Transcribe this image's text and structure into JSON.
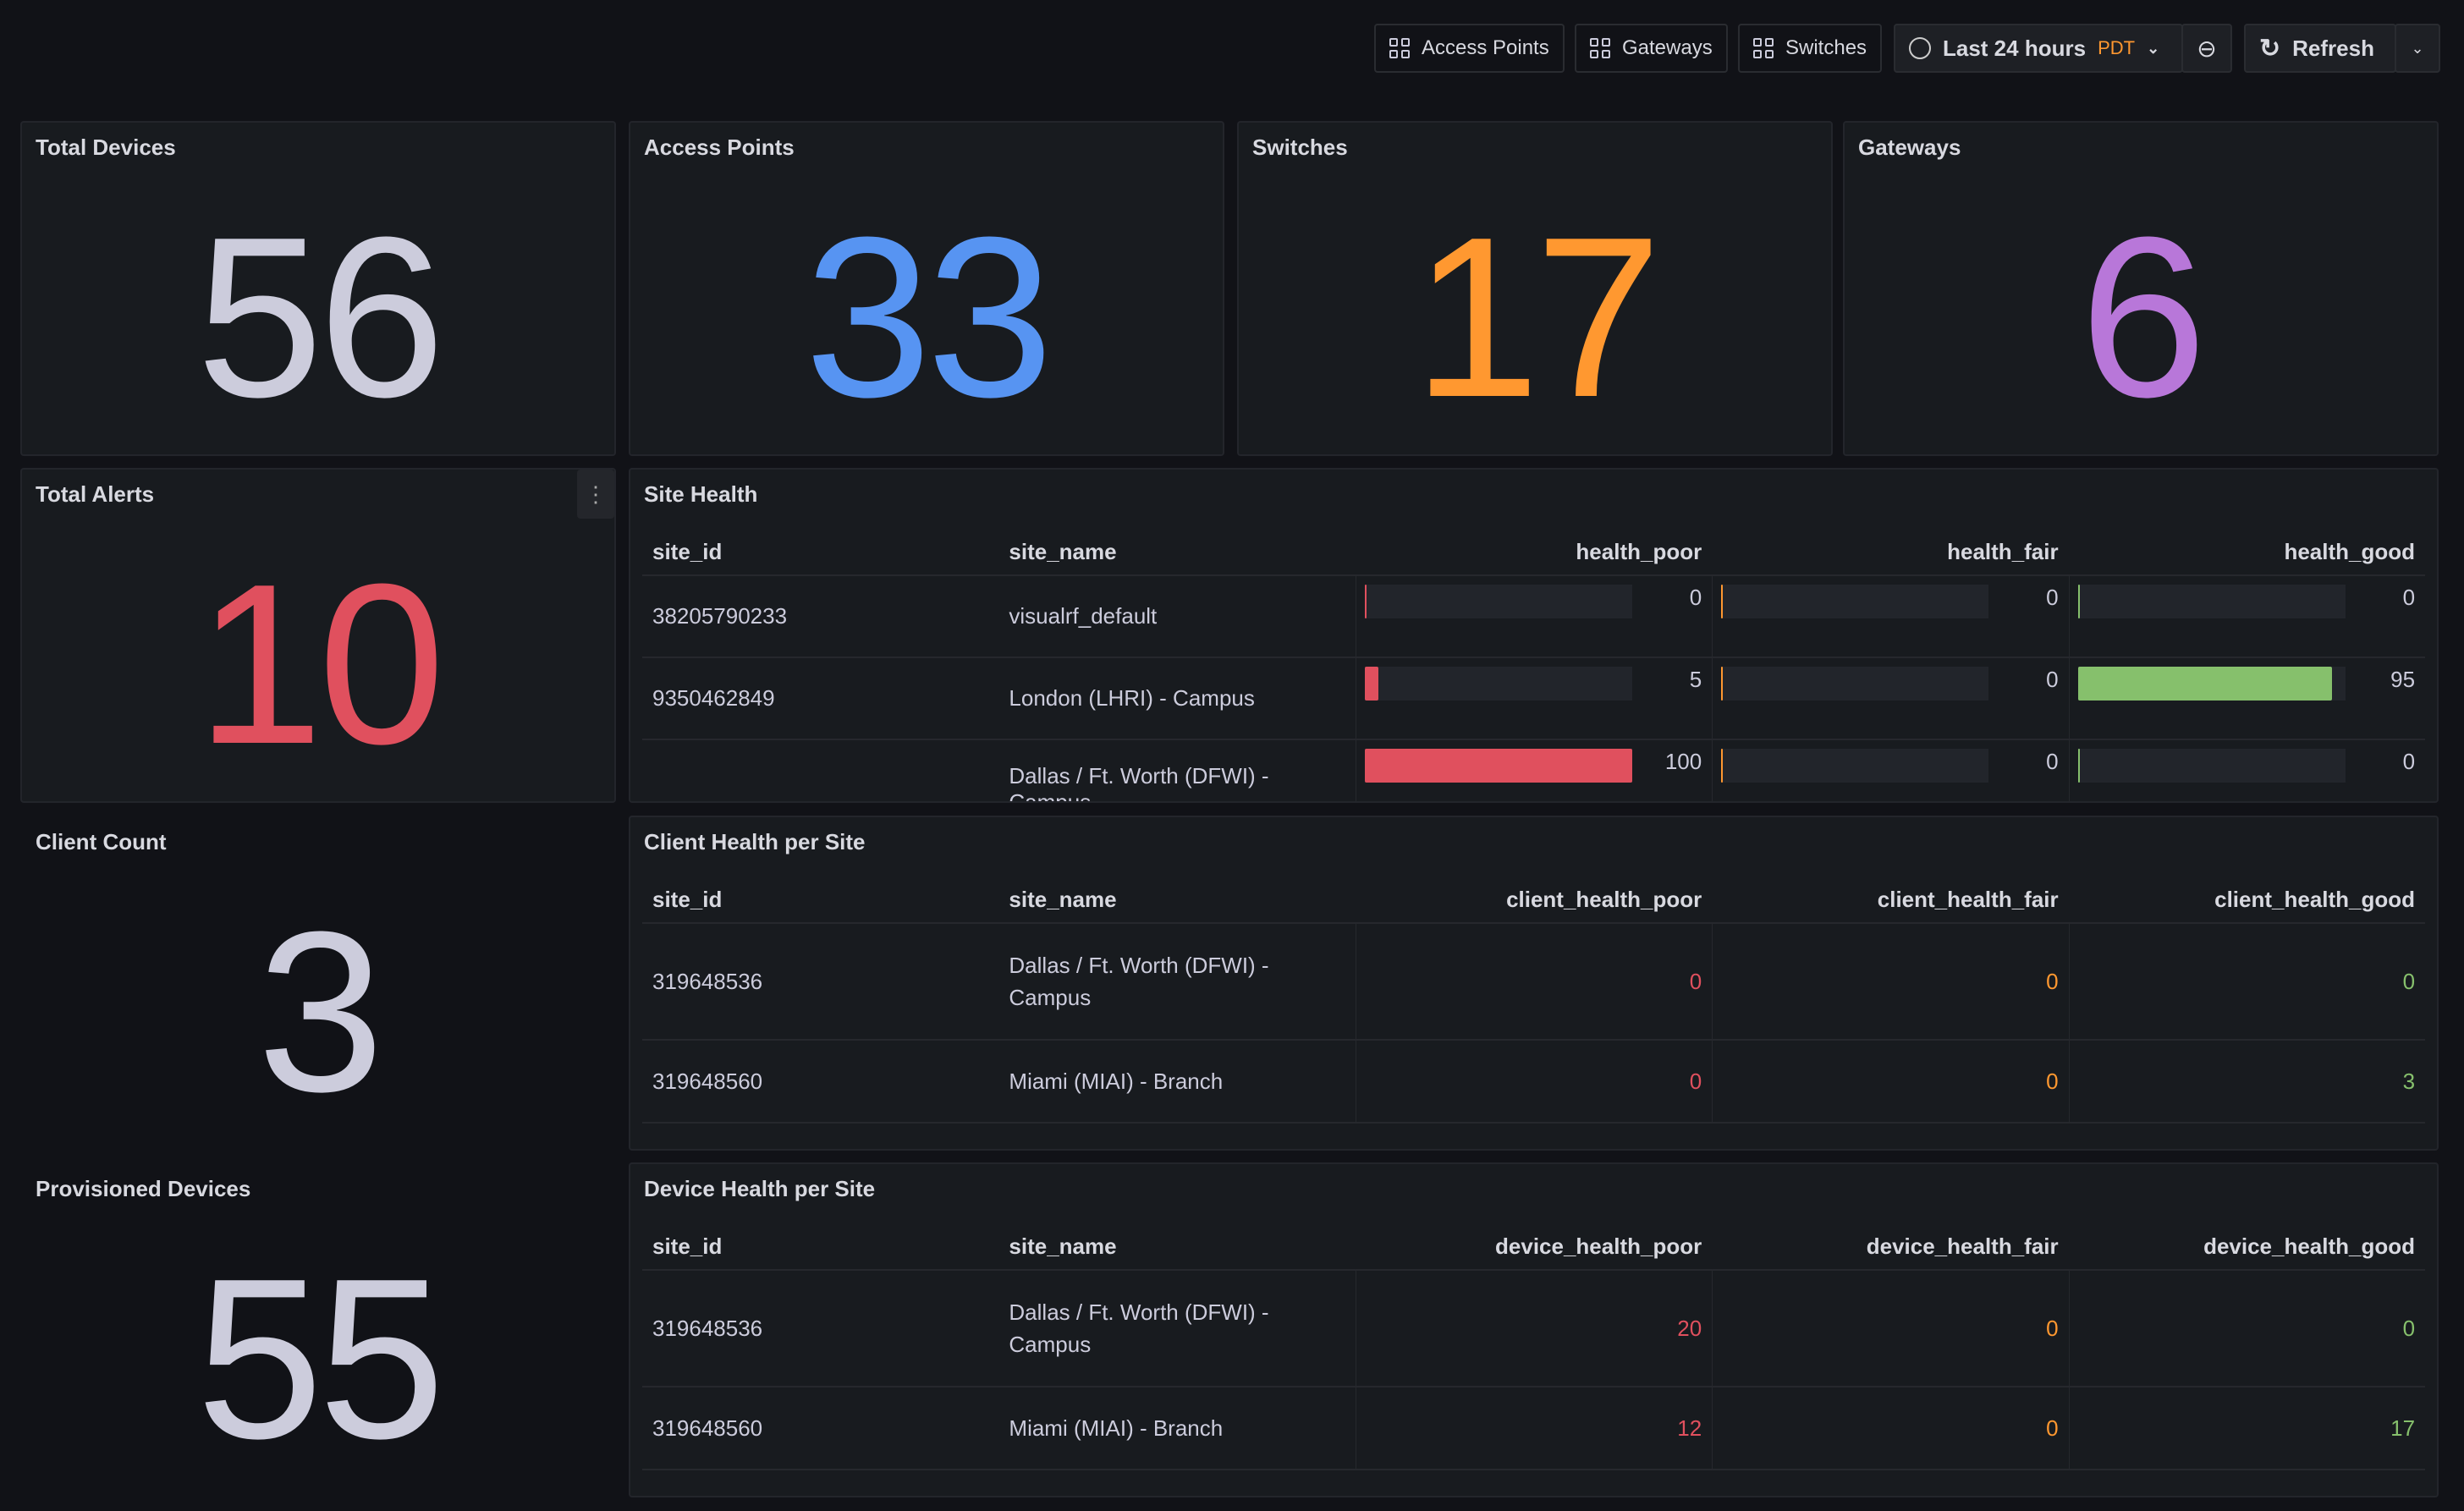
{
  "toolbar": {
    "buttons": [
      "Access Points",
      "Gateways",
      "Switches"
    ],
    "time_range": "Last 24 hours",
    "timezone": "PDT",
    "refresh": "Refresh"
  },
  "stats": [
    {
      "title": "Total Devices",
      "value": "56",
      "color": "#ccccdc"
    },
    {
      "title": "Access Points",
      "value": "33",
      "color": "#5794f2"
    },
    {
      "title": "Switches",
      "value": "17",
      "color": "#ff9830"
    },
    {
      "title": "Gateways",
      "value": "6",
      "color": "#b877d9"
    },
    {
      "title": "Total Alerts",
      "value": "10",
      "color": "#e0505e"
    },
    {
      "title": "Client Count",
      "value": "3",
      "color": "#ccccdc"
    },
    {
      "title": "Provisioned Devices",
      "value": "55",
      "color": "#ccccdc"
    }
  ],
  "colors": {
    "poor": "#e0505e",
    "fair": "#ff9830",
    "good": "#86c06c"
  },
  "site_health": {
    "title": "Site Health",
    "columns": [
      "site_id",
      "site_name",
      "health_poor",
      "health_fair",
      "health_good"
    ],
    "rows": [
      [
        "38205790233",
        "visualrf_default",
        0,
        0,
        0
      ],
      [
        "9350462849",
        "London (LHRI) - Campus",
        5,
        0,
        95
      ],
      [
        "",
        "Dallas / Ft. Worth (DFWI) - Campus",
        100,
        0,
        0
      ]
    ]
  },
  "client_health": {
    "title": "Client Health per Site",
    "columns": [
      "site_id",
      "site_name",
      "client_health_poor",
      "client_health_fair",
      "client_health_good"
    ],
    "rows": [
      [
        "319648536",
        "Dallas / Ft. Worth (DFWI) - Campus",
        "0",
        "0",
        "0"
      ],
      [
        "319648560",
        "Miami (MIAI) - Branch",
        "0",
        "0",
        "3"
      ]
    ]
  },
  "device_health": {
    "title": "Device Health per Site",
    "columns": [
      "site_id",
      "site_name",
      "device_health_poor",
      "device_health_fair",
      "device_health_good"
    ],
    "rows": [
      [
        "319648536",
        "Dallas / Ft. Worth (DFWI) - Campus",
        "20",
        "0",
        "0"
      ],
      [
        "319648560",
        "Miami (MIAI) - Branch",
        "12",
        "0",
        "17"
      ]
    ]
  }
}
